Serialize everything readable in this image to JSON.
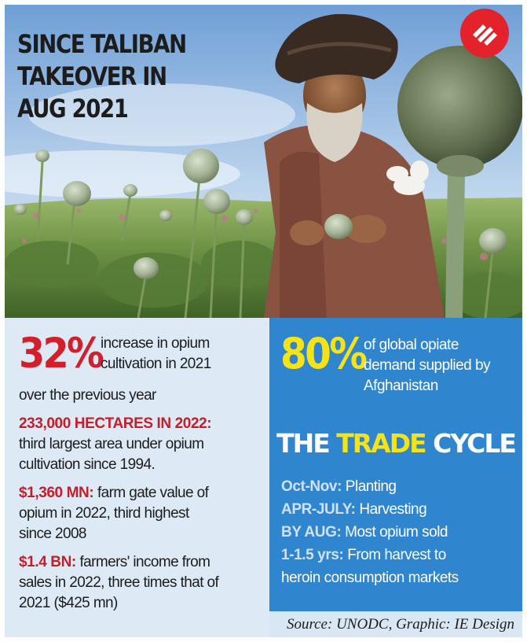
{
  "headline": [
    "SINCE TALIBAN",
    "TAKEOVER IN",
    "AUG 2021"
  ],
  "logo": {
    "name": "indian-express-logo-icon",
    "color": "#e4222b"
  },
  "photo": {
    "name": "afghan-farmer-poppy-field-photo"
  },
  "left": {
    "big_stat": "32%",
    "big_stat_text": [
      "increase in opium",
      "cultivation in 2021"
    ],
    "big_stat_text_cont": "over the previous year",
    "items": [
      {
        "key": "233,000 HECTARES IN 2022:",
        "text": "",
        "lines": [
          "third largest area under opium",
          "cultivation since 1994."
        ]
      },
      {
        "key": "$1,360 MN:",
        "text": " farm gate value of",
        "lines": [
          "opium in 2022, third highest",
          "since 2008"
        ]
      },
      {
        "key": "$1.4 BN:",
        "text": " farmers' income from",
        "lines": [
          "sales in 2022, three times that of",
          "2021 ($425 mn)"
        ]
      }
    ]
  },
  "right": {
    "big_stat": "80%",
    "big_stat_text": [
      "of global opiate",
      "demand supplied by",
      "Afghanistan"
    ],
    "cycle_title_pre": "THE ",
    "cycle_title_hl": "TRADE",
    "cycle_title_post": " CYCLE",
    "cycle": [
      {
        "key": "Oct-Nov:",
        "value": " Planting"
      },
      {
        "key": "APR-JULY:",
        "value": " Harvesting"
      },
      {
        "key": "BY AUG:",
        "value": " Most opium sold"
      },
      {
        "key": "1-1.5 yrs:",
        "value": " From harvest to"
      }
    ],
    "cycle_cont": "heroin consumption markets",
    "source": "Source: UNODC, Graphic: IE Design"
  },
  "colors": {
    "red": "#d21f2b",
    "yellow": "#f5e31a",
    "blue": "#2f86cf",
    "light_blue": "#dde9f5"
  }
}
